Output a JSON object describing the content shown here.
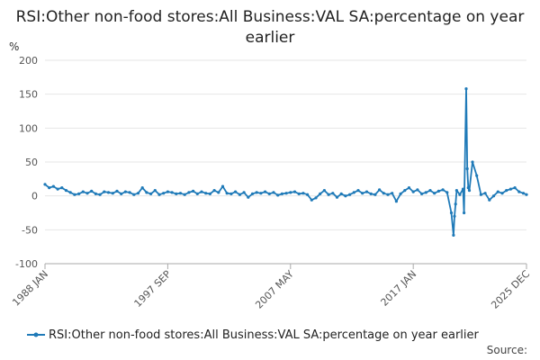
{
  "title": "RSI:Other non-food stores:All Business:VAL SA:percentage on year earlier",
  "source_label": "Source:",
  "chart_data": {
    "type": "line",
    "title": "RSI:Other non-food stores:All Business:VAL SA:percentage on year earlier",
    "ylabel": "%",
    "xlabel": "",
    "ylim": [
      -100,
      200
    ],
    "yticks": [
      -100,
      -50,
      0,
      50,
      100,
      150,
      200
    ],
    "x_range": [
      "1988 JAN",
      "2025 DEC"
    ],
    "xtick_labels": [
      "1988 JAN",
      "1997 SEP",
      "2007 MAY",
      "2017 JAN",
      "2025 DEC"
    ],
    "grid": "horizontal",
    "legend": "bottom",
    "series": [
      {
        "name": "RSI:Other non-food stores:All Business:VAL SA:percentage on year earlier",
        "color": "#1f7ab8",
        "x": [
          "1988 JAN",
          "1988 MAY",
          "1988 SEP",
          "1989 JAN",
          "1989 MAY",
          "1989 SEP",
          "1990 JAN",
          "1990 MAY",
          "1990 SEP",
          "1991 JAN",
          "1991 MAY",
          "1991 SEP",
          "1992 JAN",
          "1992 MAY",
          "1992 SEP",
          "1993 JAN",
          "1993 MAY",
          "1993 SEP",
          "1994 JAN",
          "1994 MAY",
          "1994 SEP",
          "1995 JAN",
          "1995 MAY",
          "1995 SEP",
          "1996 JAN",
          "1996 MAY",
          "1996 SEP",
          "1997 JAN",
          "1997 MAY",
          "1997 SEP",
          "1998 JAN",
          "1998 MAY",
          "1998 SEP",
          "1999 JAN",
          "1999 MAY",
          "1999 SEP",
          "2000 JAN",
          "2000 MAY",
          "2000 SEP",
          "2001 JAN",
          "2001 MAY",
          "2001 SEP",
          "2002 JAN",
          "2002 MAY",
          "2002 SEP",
          "2003 JAN",
          "2003 MAY",
          "2003 SEP",
          "2004 JAN",
          "2004 MAY",
          "2004 SEP",
          "2005 JAN",
          "2005 MAY",
          "2005 SEP",
          "2006 JAN",
          "2006 MAY",
          "2006 SEP",
          "2007 JAN",
          "2007 MAY",
          "2007 SEP",
          "2008 JAN",
          "2008 MAY",
          "2008 SEP",
          "2009 JAN",
          "2009 MAY",
          "2009 SEP",
          "2010 JAN",
          "2010 MAY",
          "2010 SEP",
          "2011 JAN",
          "2011 MAY",
          "2011 SEP",
          "2012 JAN",
          "2012 MAY",
          "2012 SEP",
          "2013 JAN",
          "2013 MAY",
          "2013 SEP",
          "2014 JAN",
          "2014 MAY",
          "2014 SEP",
          "2015 JAN",
          "2015 MAY",
          "2015 SEP",
          "2016 JAN",
          "2016 MAY",
          "2016 SEP",
          "2017 JAN",
          "2017 MAY",
          "2017 SEP",
          "2018 JAN",
          "2018 MAY",
          "2018 SEP",
          "2019 JAN",
          "2019 MAY",
          "2019 SEP",
          "2020 JAN",
          "2020 MAR",
          "2020 APR",
          "2020 MAY",
          "2020 JUN",
          "2020 SEP",
          "2020 DEC",
          "2021 JAN",
          "2021 MAR",
          "2021 APR",
          "2021 MAY",
          "2021 JUN",
          "2021 SEP",
          "2022 JAN",
          "2022 MAY",
          "2022 SEP",
          "2023 JAN",
          "2023 MAY",
          "2023 SEP",
          "2024 JAN",
          "2024 MAY",
          "2024 SEP",
          "2025 JAN",
          "2025 MAY",
          "2025 SEP",
          "2025 DEC"
        ],
        "values": [
          17,
          12,
          14,
          10,
          12,
          8,
          5,
          2,
          3,
          6,
          4,
          7,
          3,
          2,
          6,
          5,
          4,
          7,
          3,
          6,
          5,
          2,
          4,
          12,
          5,
          3,
          8,
          2,
          4,
          6,
          5,
          3,
          4,
          2,
          5,
          7,
          3,
          6,
          4,
          3,
          8,
          5,
          14,
          4,
          3,
          6,
          2,
          5,
          -2,
          3,
          5,
          4,
          6,
          3,
          5,
          1,
          3,
          4,
          5,
          6,
          3,
          4,
          2,
          -6,
          -3,
          3,
          8,
          2,
          4,
          -2,
          3,
          0,
          2,
          5,
          8,
          4,
          6,
          3,
          2,
          9,
          4,
          2,
          4,
          -8,
          3,
          8,
          12,
          6,
          9,
          3,
          5,
          8,
          4,
          7,
          9,
          5,
          -25,
          -58,
          -30,
          -12,
          8,
          2,
          10,
          -25,
          158,
          40,
          12,
          8,
          50,
          30,
          2,
          4,
          -6,
          0,
          6,
          4,
          8,
          10,
          12,
          6,
          4,
          2
        ]
      }
    ]
  }
}
